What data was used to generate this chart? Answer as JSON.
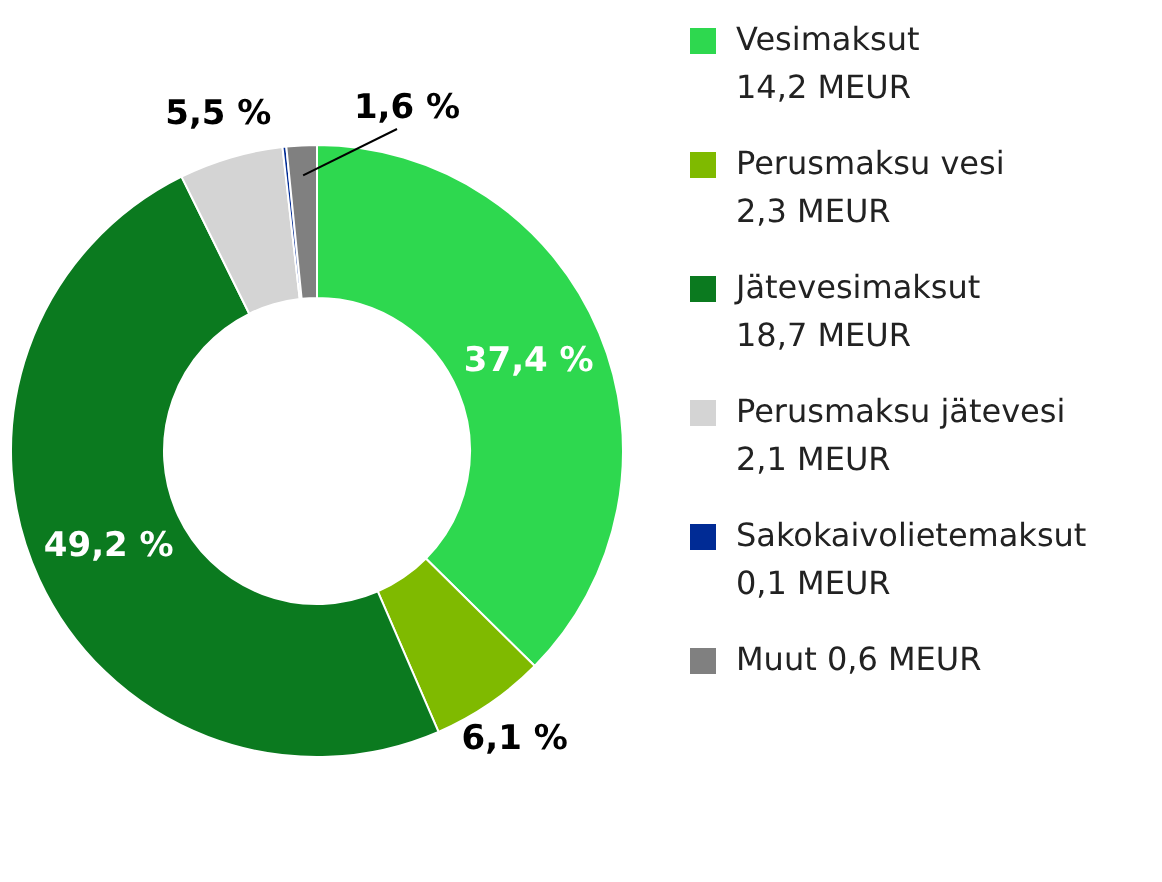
{
  "chart_data": {
    "type": "donut",
    "categories": [
      "Vesimaksut\n14,2 MEUR",
      "Perusmaksu vesi\n2,3 MEUR",
      "Jätevesimaksut\n18,7 MEUR",
      "Perusmaksu jätevesi\n2,1 MEUR",
      "Sakokaivolietemaksut\n0,1 MEUR",
      "Muut 0,6 MEUR"
    ],
    "values": [
      37.4,
      6.1,
      49.2,
      5.5,
      0.2,
      1.6
    ],
    "colors": [
      "#2ed84f",
      "#7fba00",
      "#0b7a1f",
      "#d4d4d4",
      "#002b95",
      "#808080"
    ],
    "value_labels": [
      "37,4 %",
      "6,1 %",
      "49,2 %",
      "5,5 %",
      null,
      "1,6 %"
    ],
    "legend": "right"
  }
}
